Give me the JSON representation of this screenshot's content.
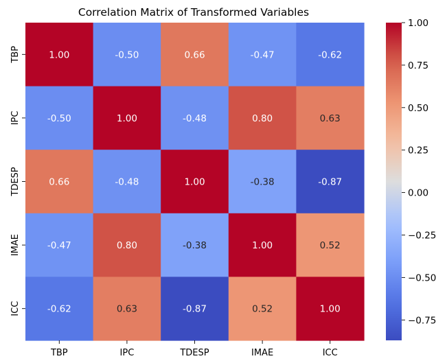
{
  "chart_data": {
    "type": "heatmap",
    "title": "Correlation Matrix of Transformed Variables",
    "xlabel": "",
    "ylabel": "",
    "x_categories": [
      "TBP",
      "IPC",
      "TDESP",
      "IMAE",
      "ICC"
    ],
    "y_categories": [
      "TBP",
      "IPC",
      "TDESP",
      "IMAE",
      "ICC"
    ],
    "values": [
      [
        1.0,
        -0.5,
        0.66,
        -0.47,
        -0.62
      ],
      [
        -0.5,
        1.0,
        -0.48,
        0.8,
        0.63
      ],
      [
        0.66,
        -0.48,
        1.0,
        -0.38,
        -0.87
      ],
      [
        -0.47,
        0.8,
        -0.38,
        1.0,
        0.52
      ],
      [
        -0.62,
        0.63,
        -0.87,
        0.52,
        1.0
      ]
    ],
    "annotation_format": "0.00",
    "colormap": "coolwarm",
    "colorbar": {
      "range": [
        -0.87,
        1.0
      ],
      "ticks": [
        1.0,
        0.75,
        0.5,
        0.25,
        0.0,
        -0.25,
        -0.5,
        -0.75
      ],
      "tick_labels": [
        "1.00",
        "0.75",
        "0.50",
        "0.25",
        "0.00",
        "−0.25",
        "−0.50",
        "−0.75"
      ]
    },
    "grid": false
  }
}
